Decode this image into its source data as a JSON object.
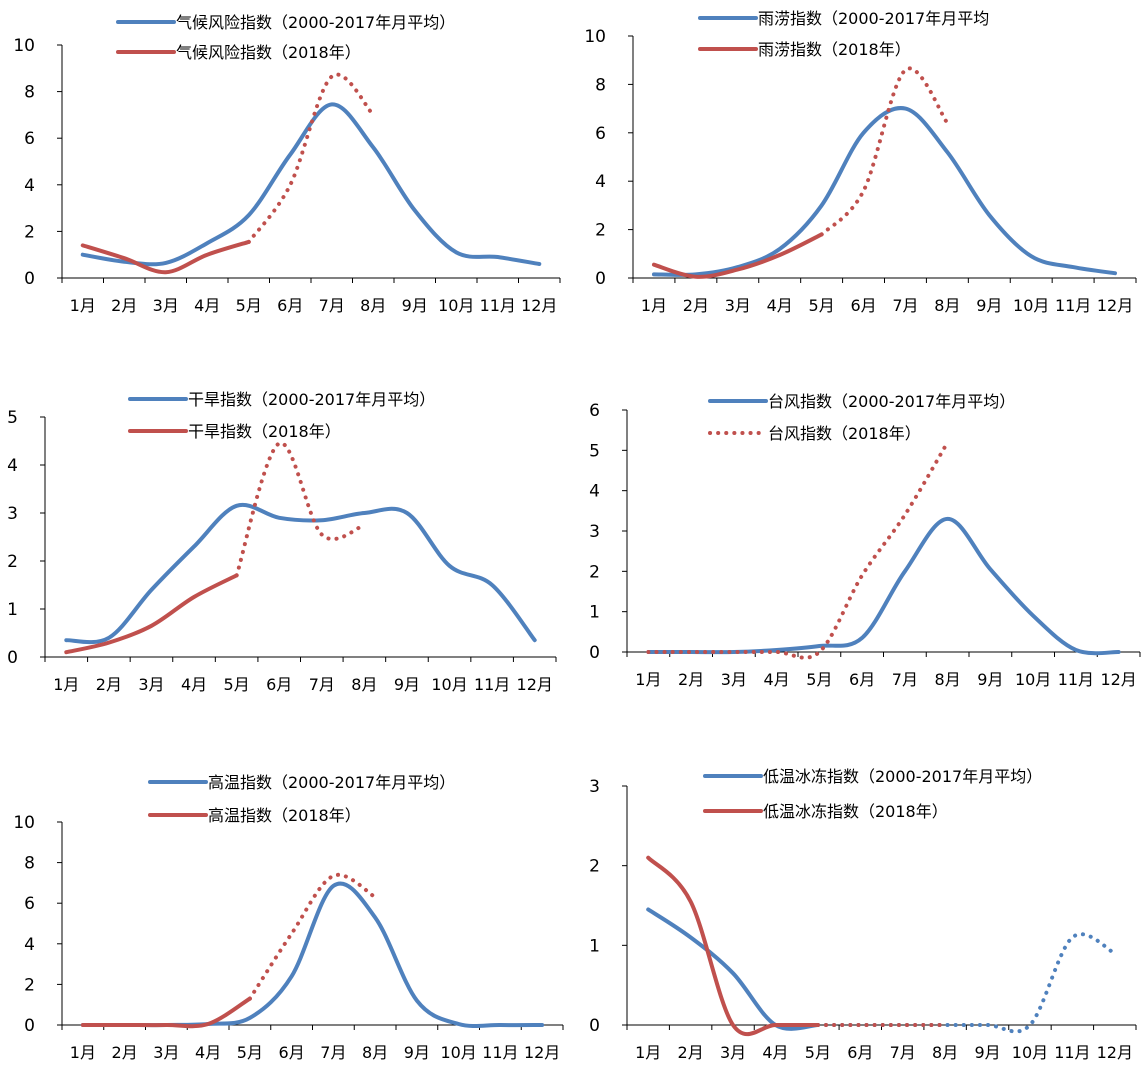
{
  "months": [
    "1月",
    "2月",
    "3月",
    "4月",
    "5月",
    "6月",
    "7月",
    "8月",
    "9月",
    "10月",
    "11月",
    "12月"
  ],
  "colors": {
    "blue": "#4F81BD",
    "red": "#C0504D"
  },
  "chart_data": [
    {
      "type": "line",
      "ylim": [
        0,
        10
      ],
      "yticks": [
        0,
        2,
        4,
        6,
        8,
        10
      ],
      "series": [
        {
          "name": "气候风险指数（2000-2017年月平均）",
          "color": "#4F81BD",
          "values": [
            1.0,
            0.7,
            0.65,
            1.5,
            2.7,
            5.3,
            7.45,
            5.6,
            2.9,
            1.1,
            0.9,
            0.6
          ]
        },
        {
          "name": "气候风险指数（2018年）",
          "color": "#C0504D",
          "values": [
            1.4,
            0.85,
            0.25,
            1.0,
            1.55,
            4.0,
            8.65,
            7.0
          ],
          "dotted_from": 4
        }
      ]
    },
    {
      "type": "line",
      "ylim": [
        0,
        10
      ],
      "yticks": [
        0,
        2,
        4,
        6,
        8,
        10
      ],
      "series": [
        {
          "name": "雨涝指数（2000-2017年月平均",
          "color": "#4F81BD",
          "values": [
            0.15,
            0.15,
            0.45,
            1.2,
            3.0,
            6.0,
            7.0,
            5.2,
            2.6,
            0.9,
            0.45,
            0.2
          ]
        },
        {
          "name": "雨涝指数（2018年）",
          "color": "#C0504D",
          "values": [
            0.55,
            0.05,
            0.35,
            0.95,
            1.8,
            3.6,
            8.6,
            6.4
          ],
          "dotted_from": 4
        }
      ]
    },
    {
      "type": "line",
      "ylim": [
        0,
        5
      ],
      "yticks": [
        0,
        1,
        2,
        3,
        4,
        5
      ],
      "series": [
        {
          "name": "干旱指数（2000-2017年月平均）",
          "color": "#4F81BD",
          "values": [
            0.35,
            0.4,
            1.4,
            2.3,
            3.15,
            2.9,
            2.85,
            3.0,
            3.0,
            1.9,
            1.5,
            0.35
          ]
        },
        {
          "name": "干旱指数（2018年）",
          "color": "#C0504D",
          "values": [
            0.1,
            0.3,
            0.65,
            1.25,
            1.7,
            4.45,
            2.55,
            2.75
          ],
          "dotted_from": 4
        }
      ]
    },
    {
      "type": "line",
      "ylim": [
        0,
        6
      ],
      "yticks": [
        0,
        1,
        2,
        3,
        4,
        5,
        6
      ],
      "series": [
        {
          "name": "台风指数（2000-2017年月平均）",
          "color": "#4F81BD",
          "values": [
            0,
            0,
            0,
            0.05,
            0.15,
            0.35,
            2.0,
            3.3,
            2.05,
            0.9,
            0.05,
            0.0
          ]
        },
        {
          "name": "台风指数（2018年）",
          "color": "#C0504D",
          "values": [
            0,
            0,
            0,
            0,
            0,
            1.9,
            3.4,
            5.2
          ],
          "dotted_from": 0
        }
      ]
    },
    {
      "type": "line",
      "ylim": [
        0,
        10
      ],
      "yticks": [
        0,
        2,
        4,
        6,
        8,
        10
      ],
      "series": [
        {
          "name": "高温指数（2000-2017年月平均）",
          "color": "#4F81BD",
          "values": [
            0,
            0,
            0,
            0.05,
            0.35,
            2.4,
            6.85,
            5.3,
            1.2,
            0.05,
            0,
            0
          ]
        },
        {
          "name": "高温指数（2018年）",
          "color": "#C0504D",
          "values": [
            0,
            0,
            0,
            0.05,
            1.3,
            4.5,
            7.35,
            6.3
          ],
          "dotted_from": 4
        }
      ]
    },
    {
      "type": "line",
      "ylim": [
        0,
        3
      ],
      "yticks": [
        0,
        1,
        2,
        3
      ],
      "series": [
        {
          "name": "低温冰冻指数（2000-2017年月平均）",
          "color": "#4F81BD",
          "values": [
            1.45,
            1.1,
            0.65,
            0,
            0,
            0,
            0,
            0,
            0,
            0,
            1.1,
            0.9
          ],
          "dotted_from": 4
        },
        {
          "name": "低温冰冻指数（2018年）",
          "color": "#C0504D",
          "values": [
            2.1,
            1.55,
            0,
            0,
            0,
            0,
            0,
            0
          ],
          "dotted_from": 4
        }
      ]
    }
  ]
}
